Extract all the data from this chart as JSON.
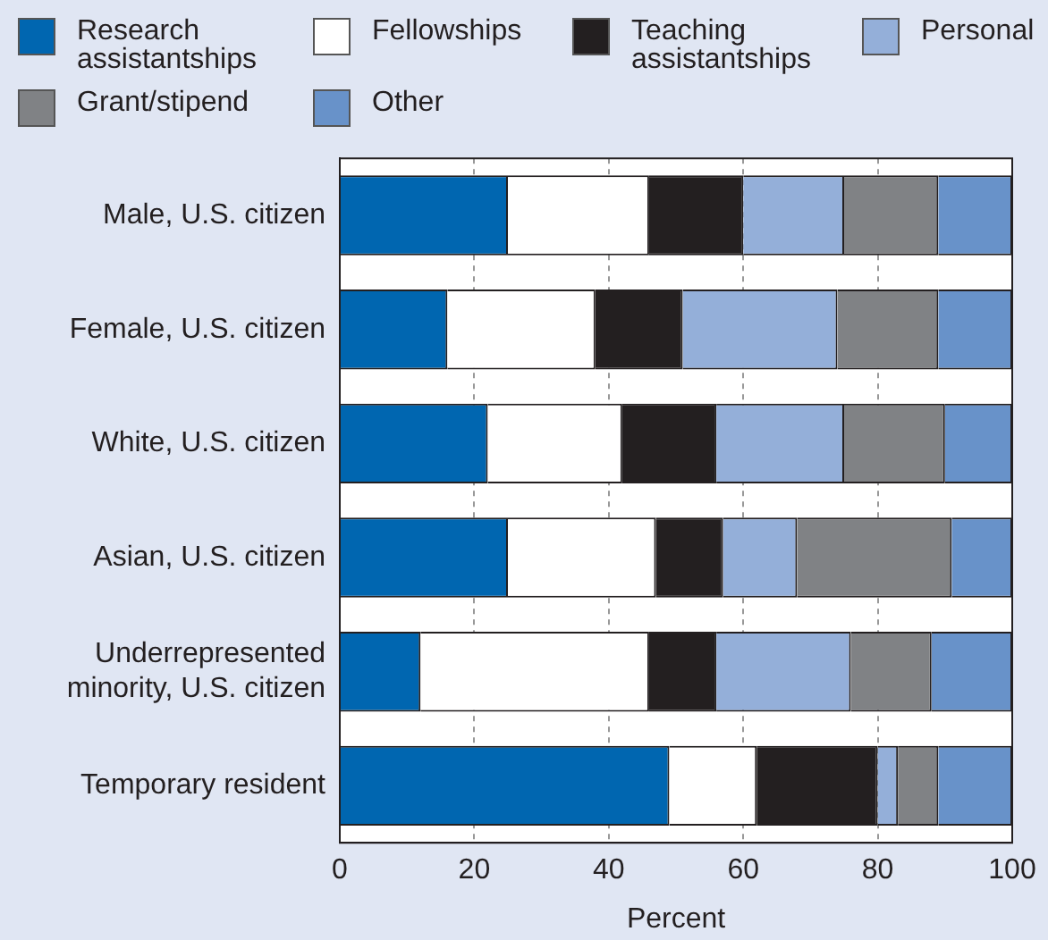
{
  "chart_data": {
    "type": "bar",
    "orientation": "horizontal",
    "stacked": true,
    "xlabel": "Percent",
    "categories": [
      "Male, U.S. citizen",
      "Female, U.S. citizen",
      "White, U.S. citizen",
      "Asian, U.S. citizen",
      "Underrepresented minority, U.S. citizen",
      "Temporary resident"
    ],
    "series": [
      {
        "name": "Research assistantships",
        "color": "#0066b0",
        "values": [
          25,
          16,
          22,
          25,
          12,
          49
        ]
      },
      {
        "name": "Fellowships",
        "color": "#ffffff",
        "values": [
          21,
          22,
          20,
          22,
          34,
          13
        ]
      },
      {
        "name": "Teaching assistantships",
        "color": "#231f20",
        "values": [
          14,
          13,
          14,
          10,
          10,
          18
        ]
      },
      {
        "name": "Personal",
        "color": "#94afd9",
        "values": [
          15,
          23,
          19,
          11,
          20,
          3
        ]
      },
      {
        "name": "Grant/stipend",
        "color": "#808285",
        "values": [
          14,
          15,
          15,
          23,
          12,
          6
        ]
      },
      {
        "name": "Other",
        "color": "#6892c9",
        "values": [
          11,
          11,
          10,
          9,
          12,
          11
        ]
      }
    ],
    "xlim": [
      0,
      100
    ],
    "xticks": [
      0,
      20,
      40,
      60,
      80,
      100
    ],
    "grid": "x",
    "legend": "top"
  }
}
